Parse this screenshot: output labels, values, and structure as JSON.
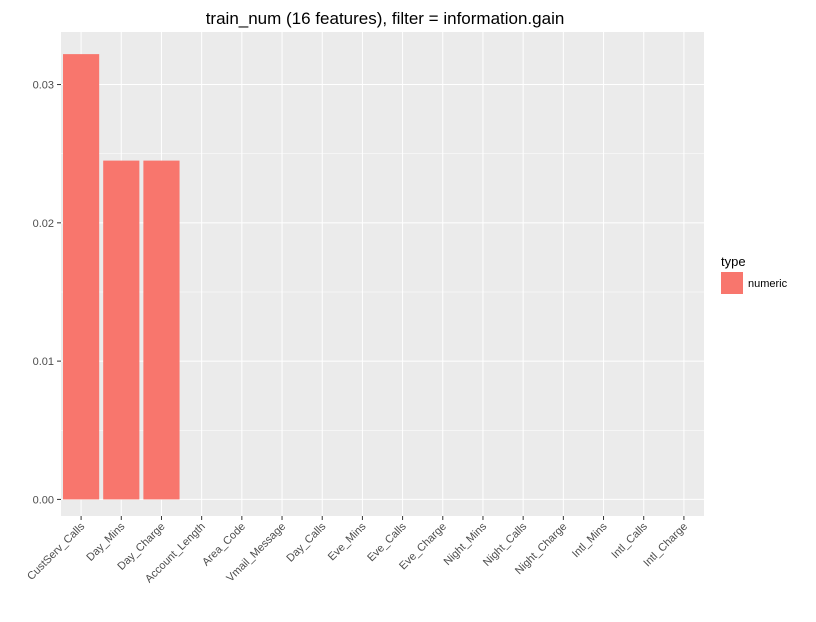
{
  "chart_data": {
    "type": "bar",
    "title": "train_num (16 features), filter = information.gain",
    "xlabel": "",
    "ylabel": "",
    "categories": [
      "CustServ_Calls",
      "Day_Mins",
      "Day_Charge",
      "Account_Length",
      "Area_Code",
      "Vmail_Message",
      "Day_Calls",
      "Eve_Mins",
      "Eve_Calls",
      "Eve_Charge",
      "Night_Mins",
      "Night_Calls",
      "Night_Charge",
      "Intl_Mins",
      "Intl_Calls",
      "Intl_Charge"
    ],
    "series": [
      {
        "name": "numeric",
        "values": [
          0.0322,
          0.0245,
          0.0245,
          0,
          0,
          0,
          0,
          0,
          0,
          0,
          0,
          0,
          0,
          0,
          0,
          0
        ]
      }
    ],
    "ylim": [
      -0.0012,
      0.0338
    ],
    "yticks": [
      0.0,
      0.01,
      0.02,
      0.03
    ],
    "ytick_labels": [
      "0.00",
      "0.01",
      "0.02",
      "0.03"
    ],
    "grid": true,
    "legend": {
      "title": "type",
      "position": "right",
      "entries": [
        {
          "label": "numeric",
          "color": "#F8766D"
        }
      ]
    },
    "colors": {
      "panel": "#EBEBEB",
      "grid": "#FFFFFF",
      "bar": "#F8766D"
    }
  }
}
